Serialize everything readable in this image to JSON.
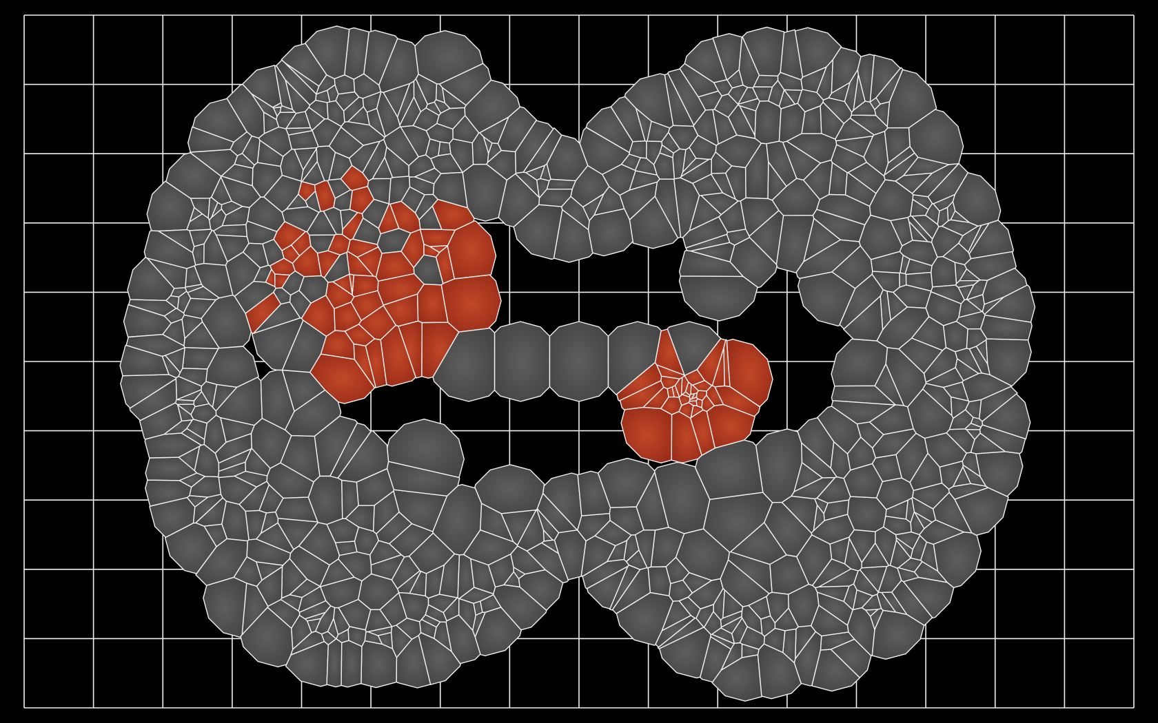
{
  "colors": {
    "background": "#000000",
    "grid": "#f2f2f2",
    "cell_fill": "#4a4a4a",
    "cell_highlight": "#5e5e5e",
    "cell_edge": "#f2f2f2",
    "selected_fill": "#a8321c",
    "selected_highlight": "#c04828"
  },
  "grid": {
    "columns": 16,
    "rows": 10
  },
  "mesh": {
    "regions": [
      {
        "name": "left-ring-mesh",
        "state": "unselected"
      },
      {
        "name": "right-ring-mesh",
        "state": "unselected"
      },
      {
        "name": "center-bridge-mesh",
        "state": "unselected"
      },
      {
        "name": "left-selected-cluster",
        "state": "selected"
      },
      {
        "name": "right-selected-cluster",
        "state": "selected"
      }
    ]
  }
}
